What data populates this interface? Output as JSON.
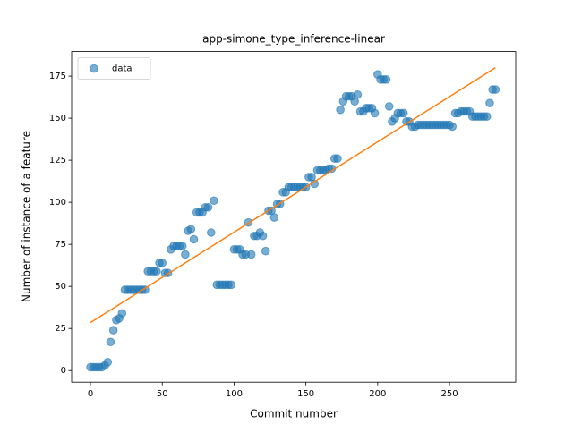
{
  "chart_data": {
    "type": "scatter",
    "title": "app-simone_type_inference-linear",
    "xlabel": "Commit number",
    "ylabel": "Number of instance of a feature",
    "xlim": [
      -13.1,
      296.1
    ],
    "ylim": [
      -6.9,
      189.6
    ],
    "xticks": [
      0,
      50,
      100,
      150,
      200,
      250
    ],
    "yticks": [
      0,
      25,
      50,
      75,
      100,
      125,
      150,
      175
    ],
    "legend": "upper left",
    "series": [
      {
        "name": "data",
        "color": "#1f77b4",
        "x": [
          0,
          2,
          4,
          6,
          8,
          10,
          12,
          14,
          16,
          18,
          20,
          22,
          24,
          26,
          28,
          30,
          32,
          34,
          36,
          38,
          40,
          42,
          44,
          46,
          48,
          50,
          52,
          54,
          56,
          58,
          60,
          62,
          64,
          66,
          68,
          70,
          72,
          74,
          76,
          78,
          80,
          82,
          84,
          86,
          88,
          90,
          92,
          94,
          96,
          98,
          100,
          102,
          104,
          106,
          108,
          110,
          112,
          114,
          116,
          118,
          120,
          122,
          124,
          126,
          128,
          130,
          132,
          134,
          136,
          138,
          140,
          142,
          144,
          146,
          148,
          150,
          152,
          154,
          156,
          158,
          160,
          162,
          164,
          166,
          168,
          170,
          172,
          174,
          176,
          178,
          180,
          182,
          184,
          186,
          188,
          190,
          192,
          194,
          196,
          198,
          200,
          202,
          204,
          206,
          208,
          210,
          212,
          214,
          216,
          218,
          220,
          222,
          224,
          226,
          228,
          230,
          232,
          234,
          236,
          238,
          240,
          242,
          244,
          246,
          248,
          250,
          252,
          254,
          256,
          258,
          260,
          262,
          264,
          266,
          268,
          270,
          272,
          274,
          276,
          278,
          280,
          282
        ],
        "values": [
          2,
          2,
          2,
          2,
          2,
          3,
          5,
          17,
          24,
          30,
          31,
          34,
          48,
          48,
          48,
          48,
          48,
          48,
          48,
          48,
          59,
          59,
          59,
          59,
          64,
          64,
          58,
          58,
          72,
          74,
          74,
          74,
          74,
          69,
          83,
          84,
          78,
          94,
          94,
          94,
          97,
          97,
          82,
          101,
          51,
          51,
          51,
          51,
          51,
          51,
          72,
          72,
          72,
          69,
          69,
          88,
          69,
          80,
          80,
          82,
          80,
          71,
          95,
          95,
          91,
          99,
          99,
          106,
          106,
          109,
          109,
          109,
          109,
          109,
          109,
          109,
          115,
          115,
          111,
          119,
          119,
          119,
          119,
          120,
          120,
          126,
          126,
          155,
          160,
          163,
          163,
          163,
          160,
          164,
          154,
          154,
          156,
          156,
          156,
          153,
          176,
          173,
          173,
          173,
          157,
          148,
          150,
          153,
          153,
          153,
          148,
          148,
          145,
          145,
          146,
          146,
          146,
          146,
          146,
          146,
          146,
          146,
          146,
          146,
          146,
          146,
          145,
          153,
          153,
          154,
          154,
          154,
          154,
          151,
          151,
          151,
          151,
          151,
          151,
          159,
          167,
          167
        ]
      }
    ],
    "fit": {
      "type": "line",
      "color": "#ff7f0e",
      "x": [
        0,
        282
      ],
      "values": [
        28.5,
        180
      ]
    }
  }
}
